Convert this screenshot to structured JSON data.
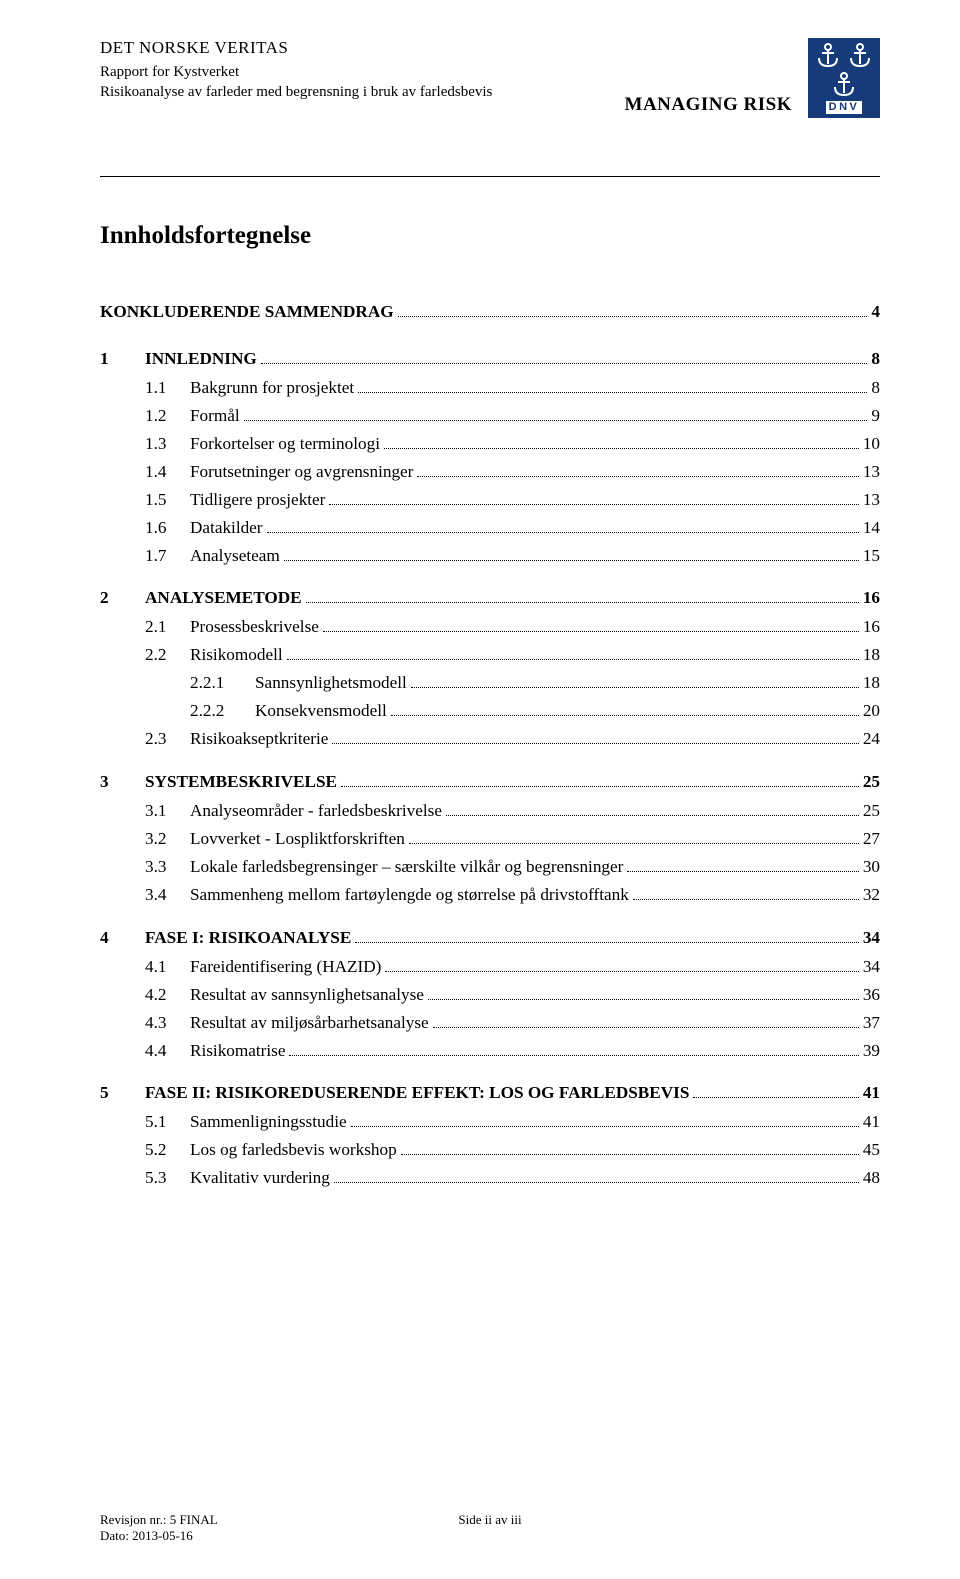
{
  "header": {
    "org_name": "DET NORSKE VERITAS",
    "report_for": "Rapport for Kystverket",
    "subtitle": "Risikoanalyse av farleder med begrensning i bruk av farledsbevis",
    "managing_risk": "MANAGING RISK",
    "logo_label": "DNV",
    "logo_bg": "#153b7a",
    "logo_fg": "#ffffff"
  },
  "toc_title": "Innholdsfortegnelse",
  "toc": [
    {
      "level": 1,
      "bold": true,
      "num": "",
      "text": "KONKLUDERENDE SAMMENDRAG",
      "page": "4"
    },
    {
      "level": 1,
      "bold": true,
      "num": "1",
      "text": "INNLEDNING",
      "page": "8"
    },
    {
      "level": 2,
      "bold": false,
      "num": "1.1",
      "text": "Bakgrunn for prosjektet",
      "page": "8"
    },
    {
      "level": 2,
      "bold": false,
      "num": "1.2",
      "text": "Formål",
      "page": "9"
    },
    {
      "level": 2,
      "bold": false,
      "num": "1.3",
      "text": "Forkortelser og terminologi",
      "page": "10"
    },
    {
      "level": 2,
      "bold": false,
      "num": "1.4",
      "text": "Forutsetninger og avgrensninger",
      "page": "13"
    },
    {
      "level": 2,
      "bold": false,
      "num": "1.5",
      "text": "Tidligere prosjekter",
      "page": "13"
    },
    {
      "level": 2,
      "bold": false,
      "num": "1.6",
      "text": "Datakilder",
      "page": "14"
    },
    {
      "level": 2,
      "bold": false,
      "num": "1.7",
      "text": "Analyseteam",
      "page": "15"
    },
    {
      "level": 1,
      "bold": true,
      "num": "2",
      "text": "ANALYSEMETODE",
      "page": "16"
    },
    {
      "level": 2,
      "bold": false,
      "num": "2.1",
      "text": "Prosessbeskrivelse",
      "page": "16"
    },
    {
      "level": 2,
      "bold": false,
      "num": "2.2",
      "text": "Risikomodell",
      "page": "18"
    },
    {
      "level": 3,
      "bold": false,
      "num": "2.2.1",
      "text": "Sannsynlighetsmodell",
      "page": "18"
    },
    {
      "level": 3,
      "bold": false,
      "num": "2.2.2",
      "text": "Konsekvensmodell",
      "page": "20"
    },
    {
      "level": 2,
      "bold": false,
      "num": "2.3",
      "text": "Risikoakseptkriterie",
      "page": "24"
    },
    {
      "level": 1,
      "bold": true,
      "num": "3",
      "text": "SYSTEMBESKRIVELSE",
      "page": "25"
    },
    {
      "level": 2,
      "bold": false,
      "num": "3.1",
      "text": "Analyseområder - farledsbeskrivelse",
      "page": "25"
    },
    {
      "level": 2,
      "bold": false,
      "num": "3.2",
      "text": "Lovverket - Lospliktforskriften",
      "page": "27"
    },
    {
      "level": 2,
      "bold": false,
      "num": "3.3",
      "text": "Lokale farledsbegrensinger – særskilte vilkår og begrensninger",
      "page": "30"
    },
    {
      "level": 2,
      "bold": false,
      "num": "3.4",
      "text": "Sammenheng mellom fartøylengde og størrelse på drivstofftank",
      "page": "32"
    },
    {
      "level": 1,
      "bold": true,
      "num": "4",
      "text": "FASE I: RISIKOANALYSE",
      "page": "34"
    },
    {
      "level": 2,
      "bold": false,
      "num": "4.1",
      "text": "Fareidentifisering (HAZID)",
      "page": "34"
    },
    {
      "level": 2,
      "bold": false,
      "num": "4.2",
      "text": "Resultat av sannsynlighetsanalyse",
      "page": "36"
    },
    {
      "level": 2,
      "bold": false,
      "num": "4.3",
      "text": "Resultat av miljøsårbarhetsanalyse",
      "page": "37"
    },
    {
      "level": 2,
      "bold": false,
      "num": "4.4",
      "text": "Risikomatrise",
      "page": "39"
    },
    {
      "level": 1,
      "bold": true,
      "num": "5",
      "text": "FASE II: RISIKOREDUSERENDE EFFEKT: LOS OG FARLEDSBEVIS",
      "page": "41"
    },
    {
      "level": 2,
      "bold": false,
      "num": "5.1",
      "text": "Sammenligningsstudie",
      "page": "41"
    },
    {
      "level": 2,
      "bold": false,
      "num": "5.2",
      "text": "Los og farledsbevis workshop",
      "page": "45"
    },
    {
      "level": 2,
      "bold": false,
      "num": "5.3",
      "text": "Kvalitativ vurdering",
      "page": "48"
    }
  ],
  "num_widths": {
    "level1": "45px",
    "level2": "45px",
    "level3": "65px"
  },
  "footer": {
    "revision": "Revisjon nr.: 5 FINAL",
    "date": "Dato: 2013-05-16",
    "page_label": "Side ii av iii"
  },
  "colors": {
    "text": "#000000",
    "background": "#ffffff",
    "divider": "#000000",
    "leader": "#000000"
  },
  "typography": {
    "body_font": "Times New Roman",
    "body_size_pt": 12,
    "title_size_pt": 18,
    "header_org_size_pt": 12
  }
}
